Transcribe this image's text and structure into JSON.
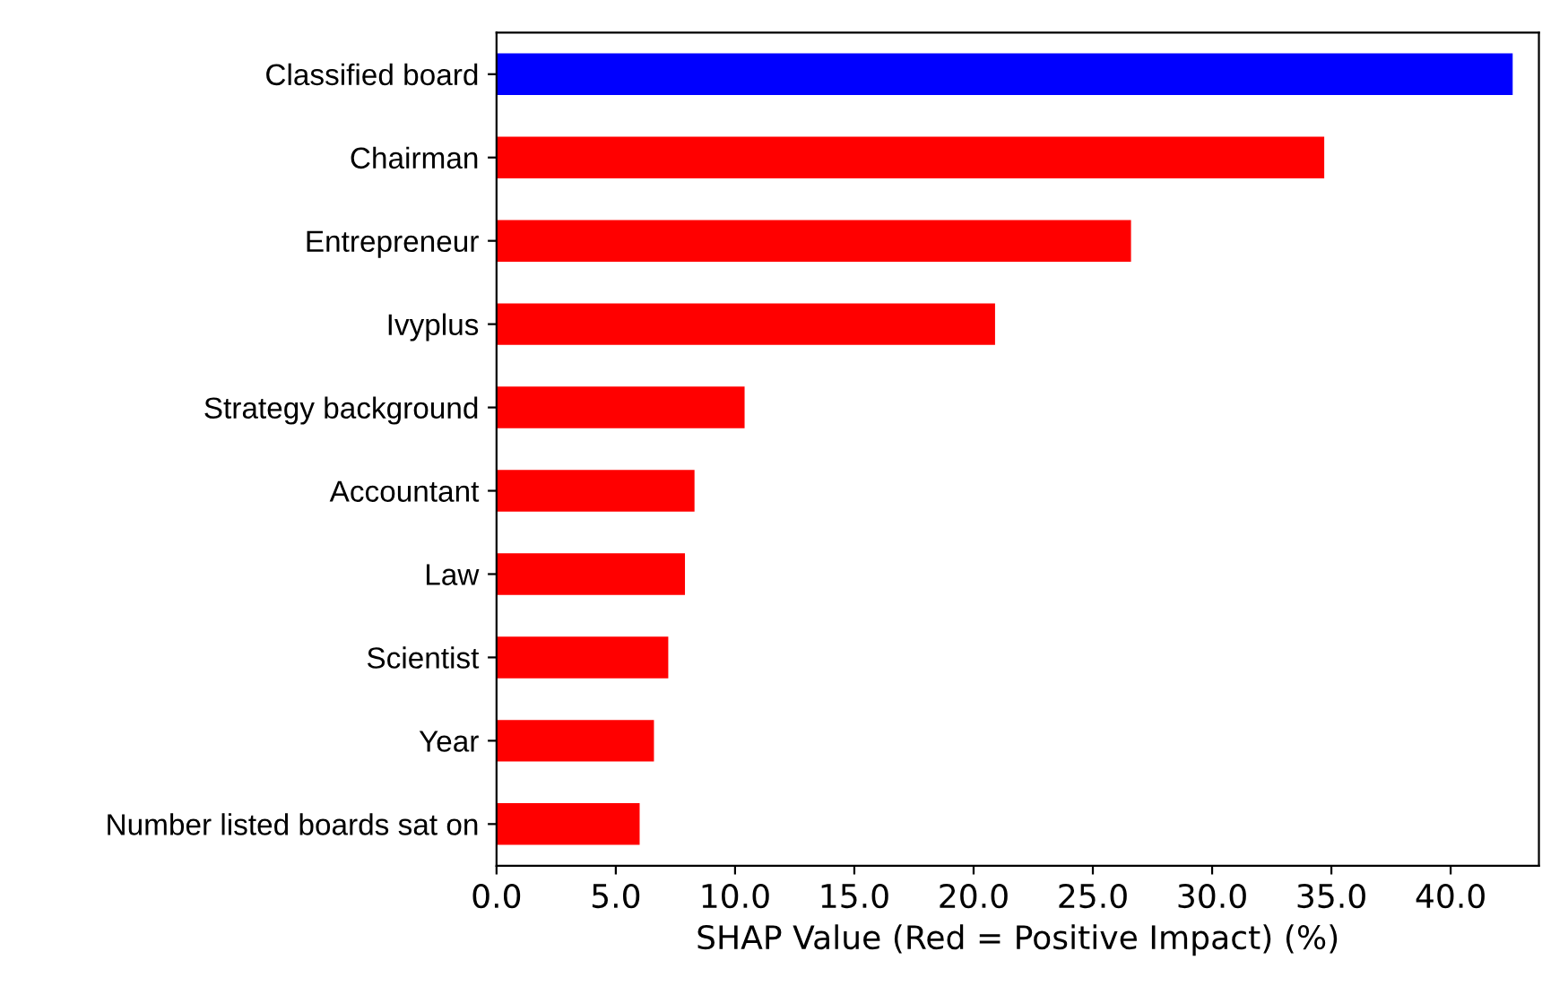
{
  "chart_data": {
    "type": "bar",
    "orientation": "horizontal",
    "xlabel": "SHAP Value (Red = Positive Impact) (%)",
    "categories": [
      "Classified board",
      "Chairman",
      "Entrepreneur",
      "Ivyplus",
      "Strategy background",
      "Accountant",
      "Law",
      "Scientist",
      "Year",
      "Number listed boards sat on"
    ],
    "values": [
      42.6,
      34.7,
      26.6,
      20.9,
      10.4,
      8.3,
      7.9,
      7.2,
      6.6,
      6.0
    ],
    "colors": [
      "#0000ff",
      "#ff0000",
      "#ff0000",
      "#ff0000",
      "#ff0000",
      "#ff0000",
      "#ff0000",
      "#ff0000",
      "#ff0000",
      "#ff0000"
    ],
    "xlim": [
      0,
      43.7
    ],
    "xticks": [
      {
        "value": 0,
        "label": "0.0"
      },
      {
        "value": 5,
        "label": "5.0"
      },
      {
        "value": 10,
        "label": "10.0"
      },
      {
        "value": 15,
        "label": "15.0"
      },
      {
        "value": 20,
        "label": "20.0"
      },
      {
        "value": 25,
        "label": "25.0"
      },
      {
        "value": 30,
        "label": "30.0"
      },
      {
        "value": 35,
        "label": "35.0"
      },
      {
        "value": 40,
        "label": "40.0"
      }
    ],
    "grid": false,
    "legend": false
  }
}
